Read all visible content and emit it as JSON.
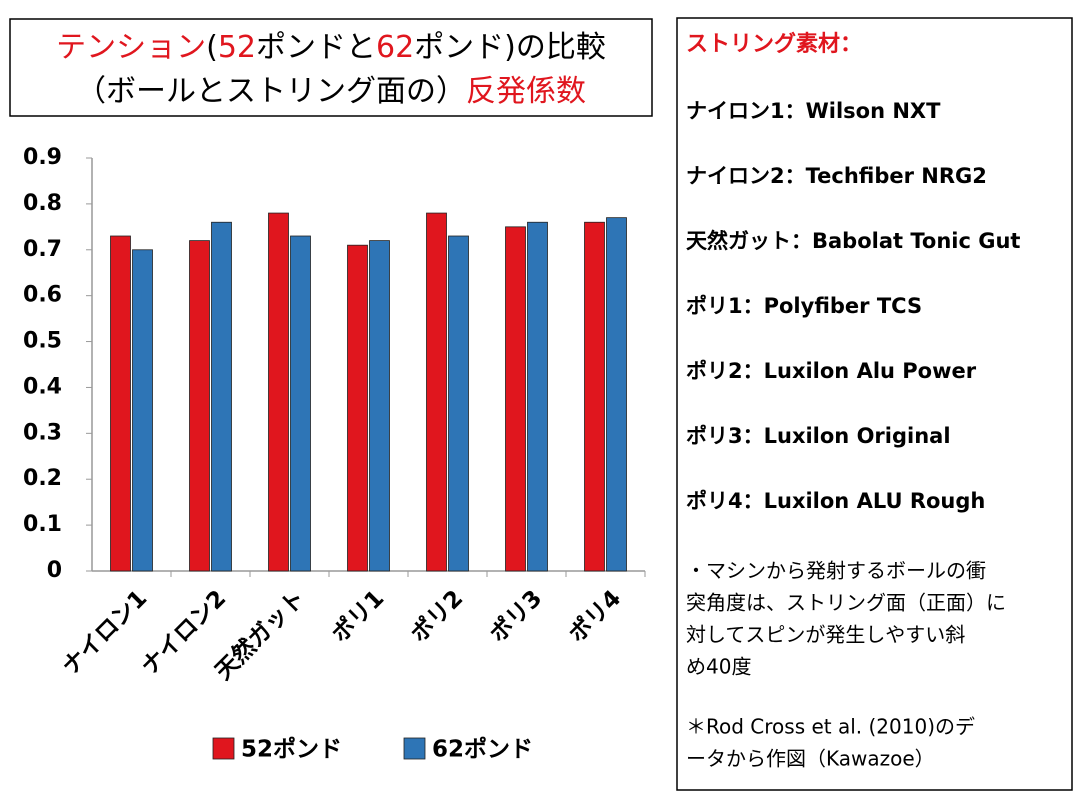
{
  "chart_data": {
    "type": "bar",
    "title_parts": [
      [
        {
          "text": "テンション",
          "color": "#e0161e"
        },
        {
          "text": "(",
          "color": "#000000"
        },
        {
          "text": "52",
          "color": "#e0161e"
        },
        {
          "text": "ポンドと",
          "color": "#000000"
        },
        {
          "text": "62",
          "color": "#e0161e"
        },
        {
          "text": "ポンド)の比較",
          "color": "#000000"
        }
      ],
      [
        {
          "text": "（ボールとストリング面の）",
          "color": "#000000"
        },
        {
          "text": "反発係数",
          "color": "#e0161e"
        }
      ]
    ],
    "categories": [
      "ナイロン1",
      "ナイロン2",
      "天然ガット",
      "ポリ1",
      "ポリ2",
      "ポリ3",
      "ポリ4"
    ],
    "series": [
      {
        "name": "52ポンド",
        "color": "#e0161e",
        "values": [
          0.73,
          0.72,
          0.78,
          0.71,
          0.78,
          0.75,
          0.76
        ]
      },
      {
        "name": "62ポンド",
        "color": "#2e75b6",
        "values": [
          0.7,
          0.76,
          0.73,
          0.72,
          0.73,
          0.76,
          0.77
        ]
      }
    ],
    "ylim": [
      0,
      0.9
    ],
    "yticks": [
      0,
      0.1,
      0.2,
      0.3,
      0.4,
      0.5,
      0.6,
      0.7,
      0.8,
      0.9
    ],
    "grid": false,
    "legend": "bottom"
  },
  "side_panel": {
    "heading": "ストリング素材：",
    "items": [
      "ナイロン1：Wilson NXT",
      "ナイロン2：Techfiber NRG2",
      "天然ガット：Babolat Tonic Gut",
      "ポリ1：Polyfiber TCS",
      "ポリ2：Luxilon Alu Power",
      "ポリ3：Luxilon Original",
      "ポリ4：Luxilon ALU Rough"
    ],
    "note_lines": [
      "・マシンから発射するボールの衝",
      "突角度は、ストリング面（正面）に",
      "対してスピンが発生しやすい斜",
      "め40度"
    ],
    "credit_lines": [
      "＊Rod Cross et al. (2010)のデ",
      "ータから作図（Kawazoe）"
    ]
  }
}
